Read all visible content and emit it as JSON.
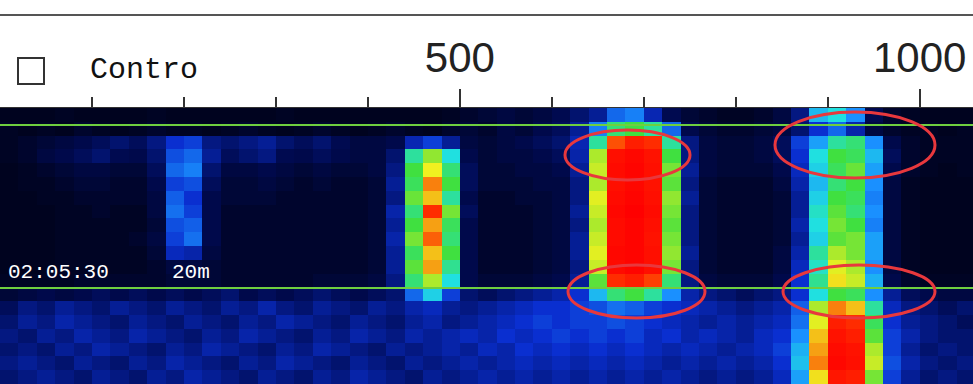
{
  "chart_data": {
    "type": "heatmap",
    "checkbox_label": "Contro",
    "annotations": [
      "02:05:30",
      "20m"
    ],
    "xlim": [
      0,
      1058
    ],
    "xticks": [
      500,
      1000
    ],
    "xminor": [
      100,
      200,
      300,
      400,
      600,
      700,
      800,
      900
    ],
    "tick_labels": "x",
    "grid": false,
    "zlim": [
      0,
      100
    ],
    "x": [
      10,
      30,
      50,
      70,
      90,
      110,
      130,
      150,
      170,
      190,
      210,
      230,
      250,
      270,
      290,
      310,
      330,
      350,
      370,
      390,
      410,
      430,
      450,
      470,
      490,
      510,
      530,
      550,
      570,
      590,
      610,
      630,
      650,
      670,
      690,
      710,
      730,
      750,
      770,
      790,
      810,
      830,
      850,
      870,
      890,
      910,
      930,
      950,
      970,
      990,
      1010,
      1030,
      1050
    ],
    "z": [
      [
        5,
        5,
        5,
        6,
        5,
        5,
        5,
        5,
        6,
        5,
        5,
        5,
        5,
        5,
        5,
        6,
        5,
        5,
        5,
        5,
        5,
        5,
        5,
        5,
        6,
        8,
        10,
        12,
        10,
        12,
        15,
        18,
        22,
        35,
        38,
        25,
        15,
        10,
        8,
        6,
        6,
        8,
        12,
        20,
        45,
        50,
        40,
        15,
        8,
        6,
        5,
        5,
        5
      ],
      [
        6,
        5,
        6,
        5,
        8,
        6,
        5,
        6,
        8,
        6,
        6,
        5,
        6,
        8,
        6,
        5,
        6,
        8,
        6,
        5,
        6,
        8,
        6,
        5,
        8,
        10,
        8,
        12,
        10,
        14,
        16,
        22,
        38,
        58,
        62,
        55,
        35,
        14,
        10,
        8,
        8,
        10,
        12,
        18,
        28,
        35,
        24,
        12,
        8,
        6,
        6,
        5,
        6
      ],
      [
        6,
        8,
        10,
        12,
        14,
        16,
        18,
        16,
        20,
        28,
        30,
        20,
        18,
        20,
        22,
        18,
        16,
        18,
        15,
        12,
        12,
        14,
        25,
        30,
        22,
        12,
        10,
        12,
        14,
        16,
        18,
        25,
        55,
        85,
        92,
        88,
        55,
        20,
        12,
        10,
        10,
        12,
        16,
        30,
        42,
        55,
        58,
        40,
        14,
        8,
        6,
        6,
        6
      ],
      [
        6,
        8,
        12,
        14,
        16,
        18,
        15,
        14,
        18,
        32,
        35,
        22,
        16,
        18,
        20,
        15,
        14,
        16,
        14,
        12,
        12,
        18,
        55,
        68,
        50,
        14,
        10,
        12,
        12,
        14,
        16,
        24,
        70,
        96,
        98,
        95,
        62,
        20,
        12,
        10,
        10,
        12,
        16,
        28,
        50,
        62,
        60,
        45,
        16,
        8,
        6,
        6,
        6
      ],
      [
        5,
        6,
        8,
        10,
        12,
        12,
        10,
        10,
        16,
        35,
        38,
        18,
        12,
        12,
        14,
        12,
        10,
        12,
        10,
        10,
        12,
        20,
        62,
        75,
        58,
        16,
        10,
        10,
        12,
        12,
        14,
        22,
        72,
        97,
        99,
        96,
        66,
        22,
        12,
        10,
        10,
        10,
        14,
        26,
        48,
        60,
        65,
        42,
        14,
        8,
        6,
        5,
        6
      ],
      [
        5,
        6,
        6,
        8,
        10,
        10,
        8,
        8,
        14,
        30,
        32,
        16,
        10,
        10,
        12,
        10,
        8,
        10,
        8,
        8,
        10,
        22,
        60,
        82,
        62,
        16,
        10,
        10,
        10,
        12,
        12,
        20,
        70,
        96,
        98,
        95,
        64,
        20,
        10,
        8,
        8,
        8,
        12,
        24,
        45,
        58,
        62,
        40,
        12,
        6,
        5,
        5,
        5
      ],
      [
        5,
        5,
        6,
        6,
        8,
        8,
        8,
        8,
        12,
        34,
        28,
        14,
        10,
        10,
        10,
        8,
        8,
        8,
        8,
        8,
        10,
        20,
        65,
        78,
        55,
        14,
        8,
        8,
        10,
        10,
        12,
        20,
        74,
        97,
        99,
        96,
        68,
        22,
        10,
        8,
        8,
        8,
        10,
        22,
        48,
        62,
        60,
        38,
        12,
        6,
        5,
        5,
        5
      ],
      [
        5,
        5,
        5,
        6,
        6,
        8,
        6,
        6,
        12,
        36,
        30,
        14,
        8,
        8,
        8,
        8,
        8,
        8,
        8,
        8,
        10,
        24,
        58,
        88,
        66,
        16,
        8,
        8,
        8,
        10,
        12,
        22,
        72,
        98,
        100,
        97,
        66,
        20,
        10,
        8,
        8,
        8,
        10,
        22,
        52,
        64,
        58,
        40,
        12,
        6,
        5,
        5,
        5
      ],
      [
        5,
        5,
        5,
        6,
        6,
        6,
        6,
        6,
        10,
        32,
        34,
        14,
        8,
        8,
        8,
        8,
        8,
        8,
        8,
        8,
        10,
        22,
        62,
        80,
        60,
        14,
        8,
        8,
        8,
        10,
        12,
        20,
        70,
        97,
        99,
        96,
        64,
        20,
        10,
        8,
        8,
        8,
        10,
        24,
        50,
        66,
        62,
        38,
        12,
        6,
        5,
        5,
        5
      ],
      [
        5,
        5,
        5,
        6,
        6,
        6,
        6,
        8,
        12,
        30,
        36,
        14,
        8,
        8,
        8,
        8,
        8,
        8,
        8,
        8,
        10,
        24,
        66,
        84,
        58,
        14,
        8,
        8,
        8,
        10,
        12,
        22,
        72,
        97,
        99,
        95,
        66,
        20,
        10,
        8,
        8,
        8,
        10,
        22,
        48,
        64,
        66,
        42,
        12,
        6,
        5,
        5,
        5
      ],
      [
        5,
        5,
        5,
        6,
        6,
        6,
        6,
        6,
        10,
        26,
        24,
        12,
        8,
        8,
        8,
        8,
        8,
        8,
        8,
        8,
        10,
        22,
        60,
        78,
        62,
        14,
        8,
        8,
        8,
        10,
        12,
        22,
        74,
        98,
        99,
        96,
        68,
        22,
        10,
        8,
        8,
        8,
        12,
        24,
        55,
        70,
        66,
        42,
        12,
        6,
        5,
        5,
        5
      ],
      [
        5,
        5,
        5,
        6,
        6,
        6,
        6,
        6,
        8,
        12,
        12,
        10,
        8,
        8,
        8,
        8,
        8,
        8,
        8,
        8,
        10,
        22,
        64,
        80,
        56,
        14,
        8,
        8,
        8,
        10,
        12,
        20,
        72,
        97,
        99,
        96,
        66,
        20,
        10,
        8,
        8,
        8,
        12,
        26,
        52,
        74,
        70,
        40,
        12,
        6,
        5,
        5,
        5
      ],
      [
        6,
        6,
        6,
        6,
        8,
        8,
        8,
        8,
        8,
        10,
        10,
        10,
        8,
        8,
        8,
        8,
        8,
        10,
        10,
        10,
        12,
        20,
        58,
        70,
        50,
        14,
        10,
        10,
        10,
        12,
        14,
        22,
        64,
        88,
        92,
        86,
        58,
        20,
        12,
        10,
        10,
        10,
        14,
        28,
        56,
        76,
        72,
        44,
        14,
        8,
        6,
        6,
        6
      ],
      [
        10,
        12,
        14,
        12,
        14,
        16,
        14,
        16,
        14,
        16,
        14,
        16,
        18,
        14,
        16,
        14,
        16,
        18,
        16,
        14,
        16,
        18,
        35,
        48,
        30,
        18,
        16,
        18,
        20,
        22,
        24,
        28,
        45,
        58,
        62,
        55,
        40,
        24,
        20,
        18,
        16,
        18,
        20,
        28,
        50,
        62,
        60,
        40,
        22,
        16,
        14,
        12,
        12
      ],
      [
        16,
        20,
        18,
        22,
        20,
        18,
        22,
        20,
        18,
        22,
        20,
        18,
        22,
        20,
        24,
        20,
        18,
        22,
        20,
        18,
        22,
        20,
        24,
        26,
        22,
        20,
        22,
        24,
        26,
        28,
        28,
        30,
        32,
        36,
        34,
        30,
        28,
        26,
        24,
        22,
        20,
        22,
        24,
        34,
        70,
        82,
        78,
        55,
        26,
        20,
        18,
        16,
        18
      ],
      [
        18,
        22,
        20,
        24,
        22,
        20,
        18,
        22,
        20,
        18,
        22,
        20,
        18,
        22,
        20,
        24,
        22,
        20,
        18,
        22,
        20,
        18,
        22,
        24,
        20,
        22,
        24,
        26,
        28,
        30,
        28,
        30,
        30,
        32,
        30,
        28,
        26,
        24,
        22,
        24,
        22,
        24,
        26,
        36,
        74,
        92,
        88,
        60,
        28,
        22,
        20,
        18,
        16
      ],
      [
        20,
        18,
        22,
        20,
        24,
        22,
        20,
        24,
        22,
        20,
        18,
        22,
        20,
        24,
        22,
        20,
        18,
        22,
        20,
        24,
        22,
        20,
        24,
        22,
        24,
        26,
        24,
        28,
        26,
        28,
        30,
        28,
        30,
        28,
        30,
        26,
        28,
        24,
        26,
        24,
        22,
        26,
        28,
        40,
        78,
        95,
        92,
        64,
        30,
        24,
        20,
        18,
        18
      ],
      [
        18,
        20,
        18,
        22,
        20,
        24,
        22,
        20,
        18,
        22,
        20,
        24,
        22,
        20,
        18,
        22,
        20,
        24,
        22,
        20,
        18,
        22,
        20,
        22,
        24,
        22,
        26,
        24,
        28,
        26,
        28,
        26,
        28,
        26,
        28,
        26,
        24,
        26,
        24,
        22,
        24,
        26,
        30,
        44,
        80,
        97,
        95,
        70,
        30,
        22,
        18,
        20,
        18
      ],
      [
        20,
        22,
        20,
        18,
        22,
        20,
        18,
        22,
        20,
        24,
        22,
        20,
        18,
        22,
        20,
        24,
        22,
        20,
        18,
        22,
        20,
        18,
        22,
        20,
        22,
        24,
        22,
        24,
        26,
        24,
        26,
        24,
        26,
        24,
        26,
        24,
        22,
        24,
        22,
        24,
        22,
        24,
        28,
        46,
        82,
        98,
        96,
        72,
        32,
        24,
        20,
        18,
        20
      ],
      [
        18,
        20,
        22,
        20,
        18,
        22,
        20,
        18,
        22,
        20,
        24,
        22,
        20,
        18,
        22,
        20,
        18,
        22,
        20,
        24,
        22,
        20,
        18,
        22,
        20,
        22,
        24,
        22,
        24,
        22,
        24,
        22,
        24,
        22,
        24,
        22,
        24,
        22,
        20,
        22,
        20,
        22,
        26,
        42,
        76,
        94,
        92,
        66,
        30,
        22,
        18,
        20,
        18
      ]
    ]
  }
}
